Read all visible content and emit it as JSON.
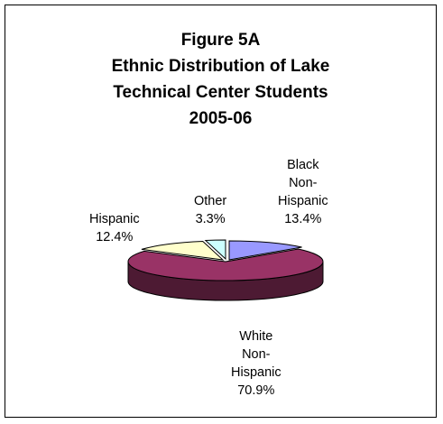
{
  "chart_data": {
    "type": "pie",
    "style": "3d-exploded",
    "title_lines": [
      "Figure 5A",
      "Ethnic Distribution of Lake",
      "Technical Center Students",
      "2005-06"
    ],
    "slices": [
      {
        "label_lines": [
          "Black",
          "Non-",
          "Hispanic"
        ],
        "value_label": "13.4%",
        "value": 13.4,
        "color": "#9999ff",
        "side": "#4d4d99"
      },
      {
        "label_lines": [
          "White",
          "Non-",
          "Hispanic"
        ],
        "value_label": "70.9%",
        "value": 70.9,
        "color": "#993366",
        "side": "#4d1a33"
      },
      {
        "label_lines": [
          "Hispanic"
        ],
        "value_label": "12.4%",
        "value": 12.4,
        "color": "#ffffcc",
        "side": "#999966"
      },
      {
        "label_lines": [
          "Other"
        ],
        "value_label": "3.3%",
        "value": 3.3,
        "color": "#ccffff",
        "side": "#669999"
      }
    ],
    "legend": "none"
  }
}
